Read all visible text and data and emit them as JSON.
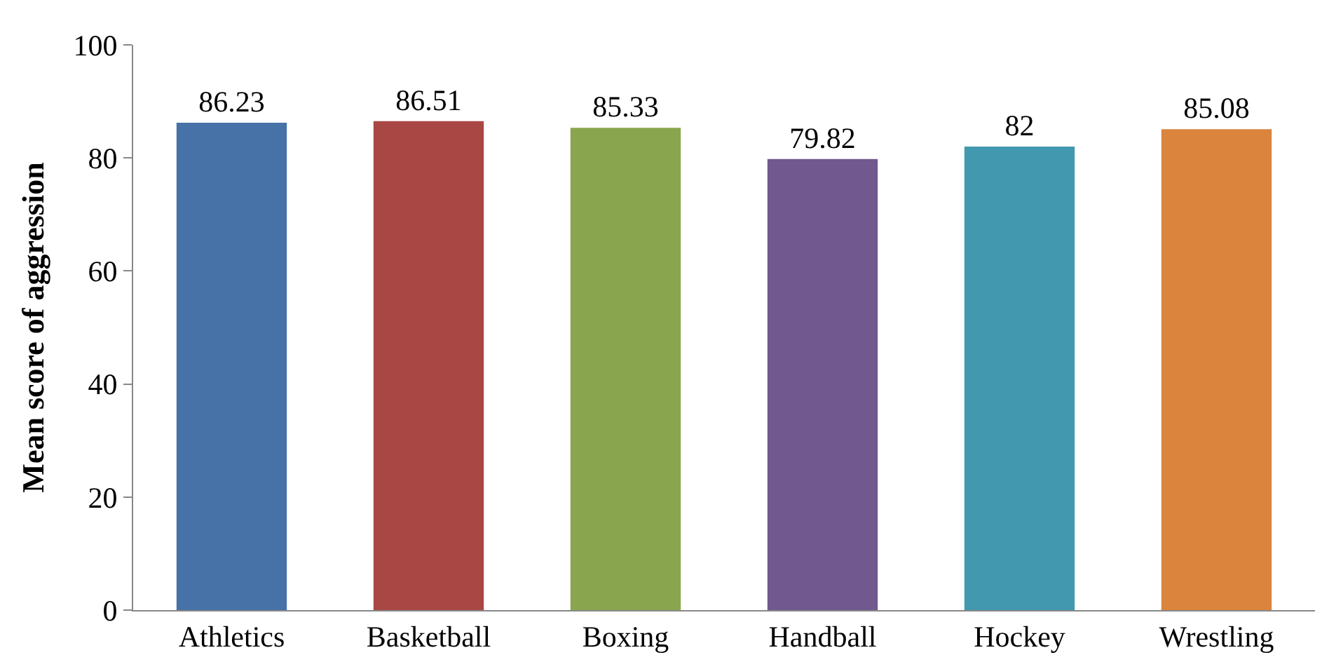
{
  "chart_data": {
    "type": "bar",
    "ylabel": "Mean score of aggression",
    "categories": [
      "Athletics",
      "Basketball",
      "Boxing",
      "Handball",
      "Hockey",
      "Wrestling"
    ],
    "values": [
      86.23,
      86.51,
      85.33,
      79.82,
      82,
      85.08
    ],
    "colors": [
      "#4672a8",
      "#a84744",
      "#89a54e",
      "#71588f",
      "#4198af",
      "#db843d"
    ],
    "ylim": [
      0,
      100
    ],
    "yticks": [
      0,
      20,
      40,
      60,
      80,
      100
    ],
    "data_labels": true
  }
}
